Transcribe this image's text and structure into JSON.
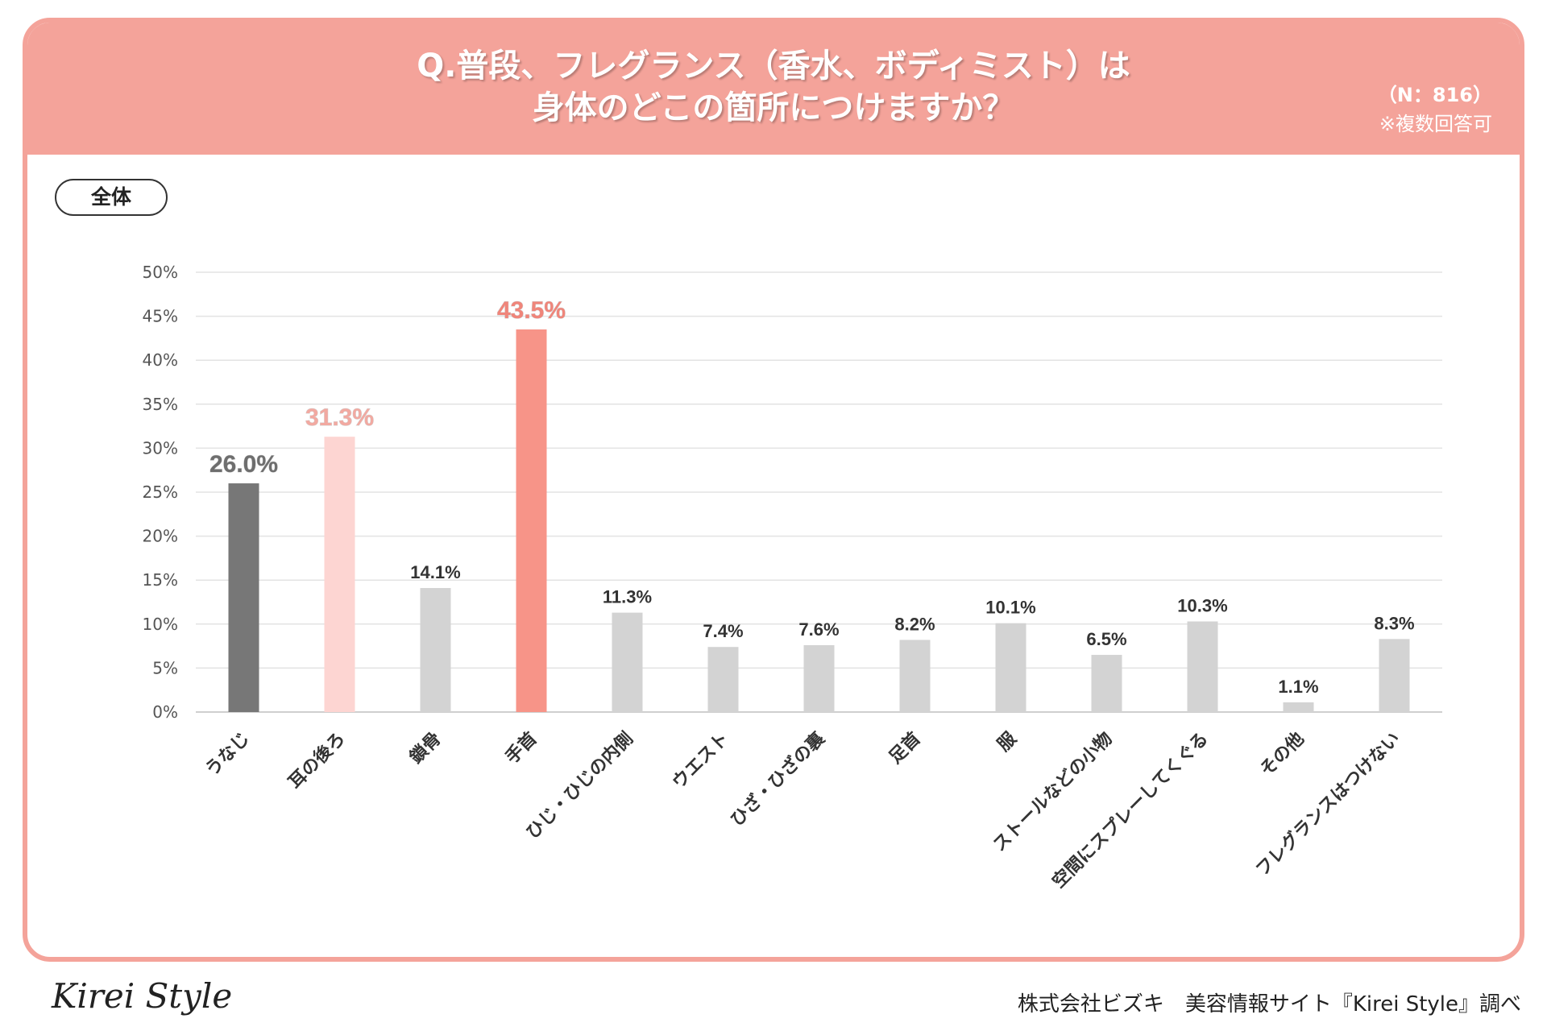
{
  "header": {
    "title_line1": "Q.普段、フレグランス（香水、ボディミスト）は",
    "title_line2": "身体のどこの箇所につけますか？",
    "n_label": "（N：816）",
    "note": "※複数回答可"
  },
  "segment_label": "全体",
  "colors": {
    "header_bg": "#f4a39a",
    "bar_dark": "#777777",
    "bar_light_pink": "#fdd5d2",
    "bar_salmon": "#f79488",
    "bar_gray": "#d3d3d3",
    "label_dark": "#6e6e6e",
    "label_pink": "#f2a9a1",
    "label_salmon": "#f0857a",
    "label_default": "#333333"
  },
  "chart_data": {
    "type": "bar",
    "title": "Q.普段、フレグランス（香水、ボディミスト）は身体のどこの箇所につけますか？",
    "xlabel": "",
    "ylabel": "",
    "ylim": [
      0,
      50
    ],
    "yticks": [
      0,
      5,
      10,
      15,
      20,
      25,
      30,
      35,
      40,
      45,
      50
    ],
    "ytick_labels": [
      "0%",
      "5%",
      "10%",
      "15%",
      "20%",
      "25%",
      "30%",
      "35%",
      "40%",
      "45%",
      "50%"
    ],
    "grid": true,
    "categories": [
      "うなじ",
      "耳の後ろ",
      "鎖骨",
      "手首",
      "ひじ・ひじの内側",
      "ウエスト",
      "ひざ・ひざの裏",
      "足首",
      "服",
      "ストールなどの小物",
      "空間にスプレーしてくぐる",
      "その他",
      "フレグランスはつけない"
    ],
    "values": [
      26.0,
      31.3,
      14.1,
      43.5,
      11.3,
      7.4,
      7.6,
      8.2,
      10.1,
      6.5,
      10.3,
      1.1,
      8.3
    ],
    "value_labels": [
      "26.0%",
      "31.3%",
      "14.1%",
      "43.5%",
      "11.3%",
      "7.4%",
      "7.6%",
      "8.2%",
      "10.1%",
      "6.5%",
      "10.3%",
      "1.1%",
      "8.3%"
    ],
    "bar_colors": [
      "#777777",
      "#fdd5d2",
      "#d3d3d3",
      "#f79488",
      "#d3d3d3",
      "#d3d3d3",
      "#d3d3d3",
      "#d3d3d3",
      "#d3d3d3",
      "#d3d3d3",
      "#d3d3d3",
      "#d3d3d3",
      "#d3d3d3"
    ],
    "label_colors": [
      "#6e6e6e",
      "#f2a9a1",
      "#333333",
      "#f0857a",
      "#333333",
      "#333333",
      "#333333",
      "#333333",
      "#333333",
      "#333333",
      "#333333",
      "#333333",
      "#333333"
    ],
    "highlighted": [
      true,
      true,
      false,
      true,
      false,
      false,
      false,
      false,
      false,
      false,
      false,
      false,
      false
    ]
  },
  "footer": {
    "logo": "Kirei Style",
    "credit": "株式会社ビズキ　美容情報サイト『Kirei Style』調べ"
  }
}
